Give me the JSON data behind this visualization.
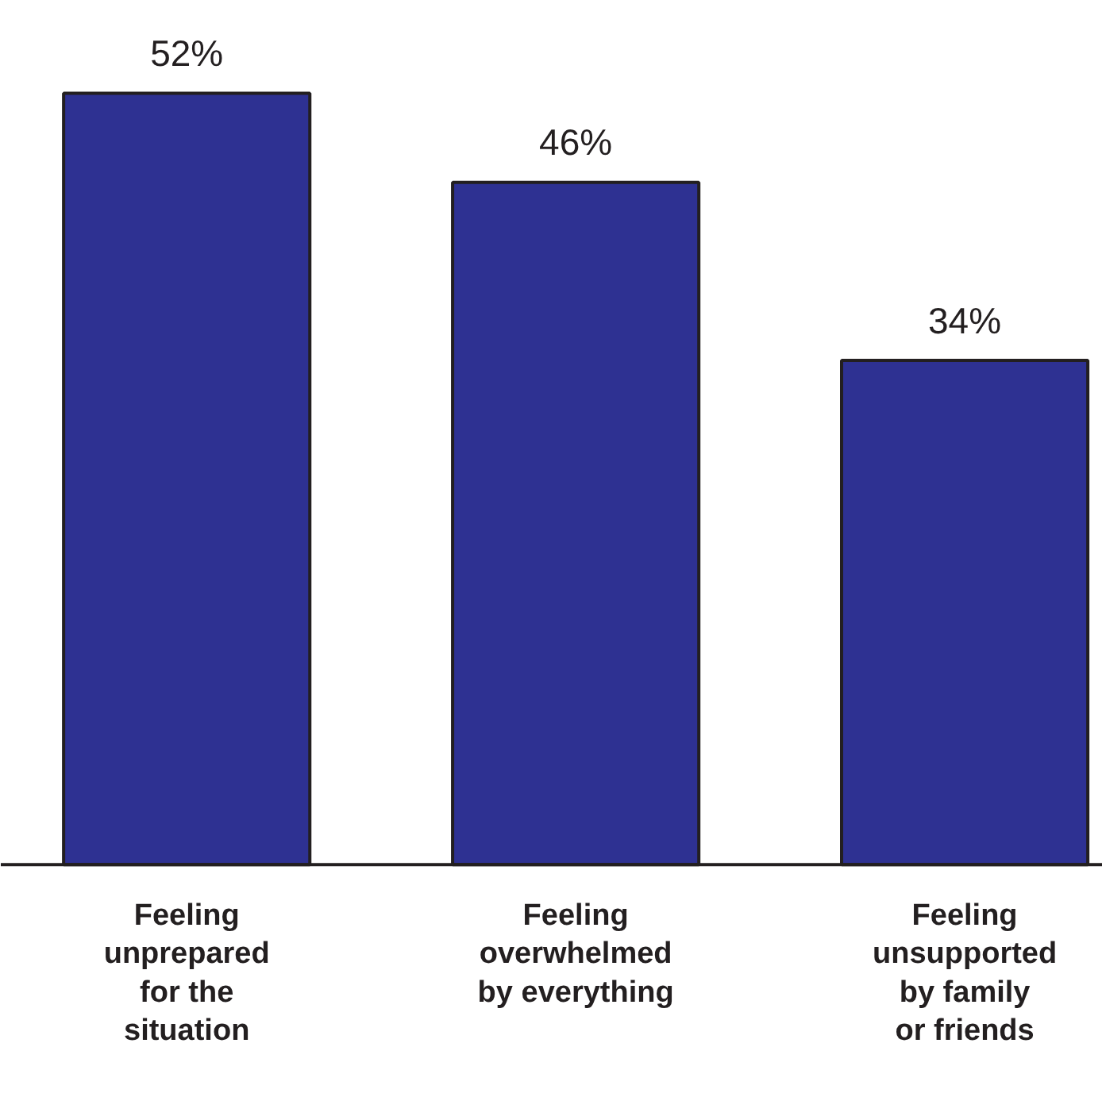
{
  "chart_data": {
    "type": "bar",
    "categories": [
      "Feeling\nunprepared\nfor the\nsituation",
      "Feeling\noverwhelmed\nby everything",
      "Feeling\nunsupported\nby family\nor friends"
    ],
    "values": [
      52,
      46,
      34
    ],
    "value_labels": [
      "52%",
      "46%",
      "34%"
    ],
    "color": "#2e3192"
  }
}
